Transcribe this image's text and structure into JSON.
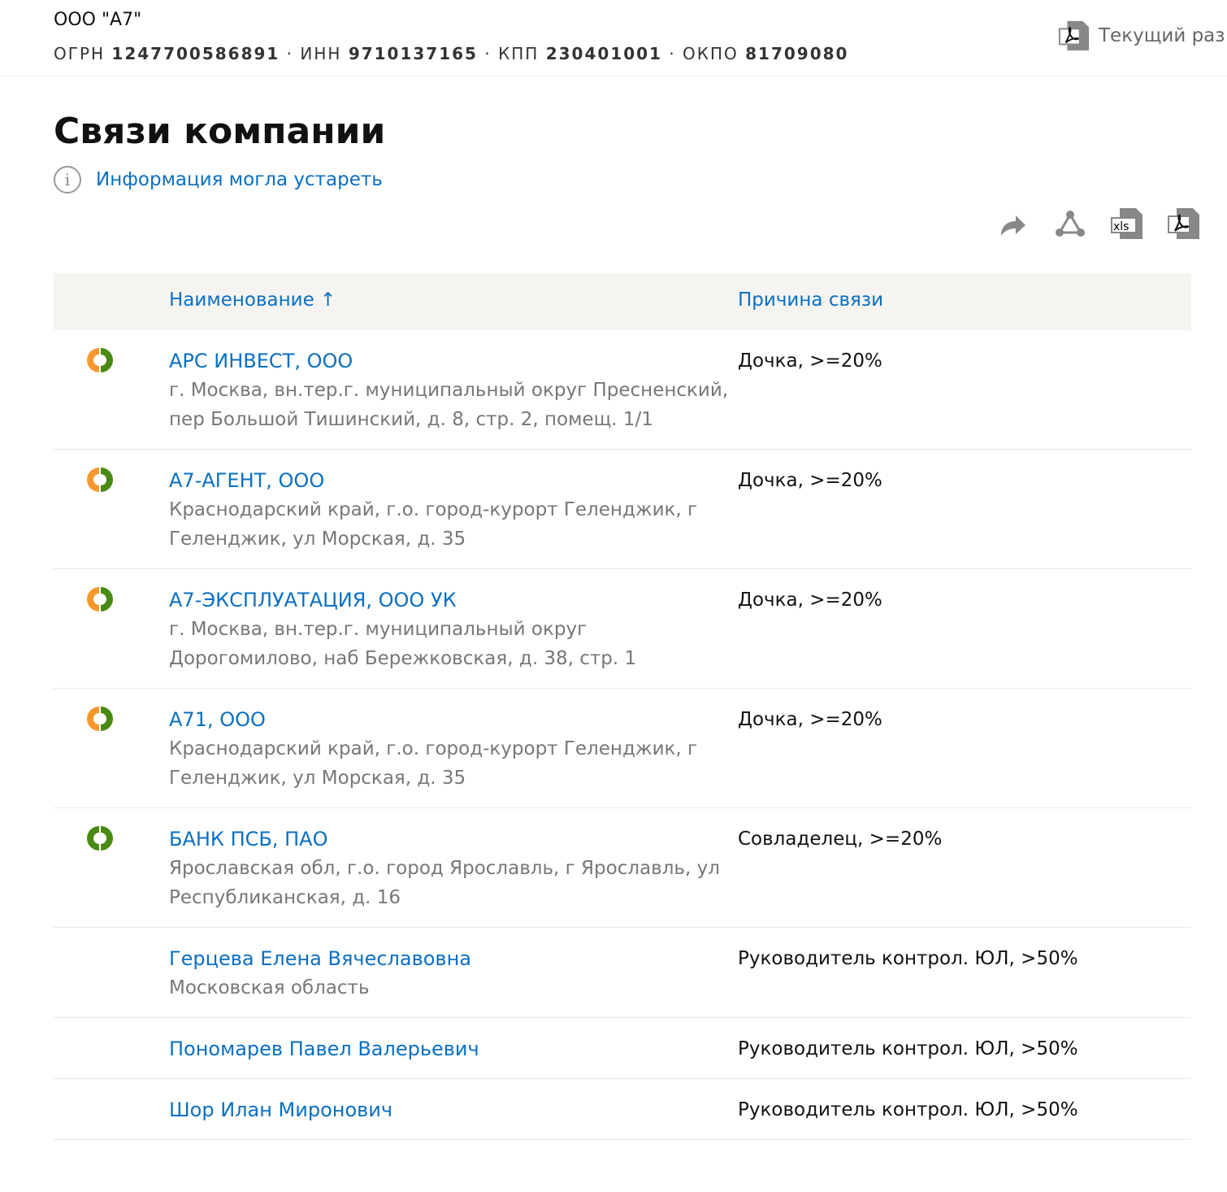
{
  "header": {
    "company": "ООО \"А7\"",
    "ogrn_label": "ОГРН",
    "ogrn": "1247700586891",
    "inn_label": "ИНН",
    "inn": "9710137165",
    "kpp_label": "КПП",
    "kpp": "230401001",
    "okpo_label": "ОКПО",
    "okpo": "81709080",
    "current_section": "Текущий раз"
  },
  "page": {
    "title": "Связи компании",
    "info_link": "Информация могла устареть"
  },
  "toolbar": {
    "icons": [
      "share-icon",
      "graph-icon",
      "xls-export-icon",
      "pdf-export-icon"
    ]
  },
  "table": {
    "col_name": "Наименование ↑",
    "col_reason": "Причина связи",
    "rows": [
      {
        "name": "АРС ИНВЕСТ, ООО",
        "address": "г. Москва, вн.тер.г. муниципальный округ Пресненский, пер Большой Тишинский, д. 8, стр. 2, помещ. 1/1",
        "reason": "Дочка, >=20%",
        "status": "orange-green"
      },
      {
        "name": "А7-АГЕНТ, ООО",
        "address": "Краснодарский край, г.о. город-курорт Геленджик, г Геленджик, ул Морская, д. 35",
        "reason": "Дочка, >=20%",
        "status": "orange-green"
      },
      {
        "name": "А7-ЭКСПЛУАТАЦИЯ, ООО УК",
        "address": "г. Москва, вн.тер.г. муниципальный округ Дорогомилово, наб Бережковская, д. 38, стр. 1",
        "reason": "Дочка, >=20%",
        "status": "orange-green"
      },
      {
        "name": "А71, ООО",
        "address": "Краснодарский край, г.о. город-курорт Геленджик, г Геленджик, ул Морская, д. 35",
        "reason": "Дочка, >=20%",
        "status": "orange-green"
      },
      {
        "name": "БАНК ПСБ, ПАО",
        "address": "Ярославская обл, г.о. город Ярославль, г Ярославль, ул Республиканская, д. 16",
        "reason": "Совладелец, >=20%",
        "status": "green"
      },
      {
        "name": "Герцева Елена Вячеславовна",
        "address": "Московская область",
        "reason": "Руководитель контрол. ЮЛ, >50%",
        "status": ""
      },
      {
        "name": "Пономарев Павел Валерьевич",
        "address": "",
        "reason": "Руководитель контрол. ЮЛ, >50%",
        "status": ""
      },
      {
        "name": "Шор Илан Миронович",
        "address": "",
        "reason": "Руководитель контрол. ЮЛ, >50%",
        "status": ""
      }
    ]
  },
  "colors": {
    "link": "#0a6fc2",
    "orange": "#f7982c",
    "green": "#4a8a12"
  }
}
